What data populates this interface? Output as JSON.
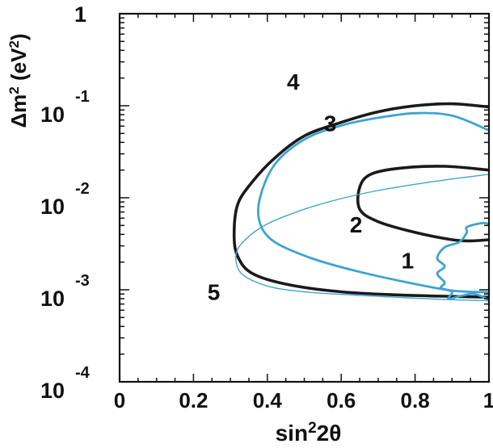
{
  "chart_data": {
    "type": "line",
    "xlabel": "sin²2θ",
    "ylabel": "Δm² (eV²)",
    "xlim": [
      0,
      1
    ],
    "ylim": [
      0.0001,
      1
    ],
    "yscale": "log",
    "grid": false,
    "legend": "none",
    "x_ticks": [
      "0",
      "0.2",
      "0.4",
      "0.6",
      "0.8",
      "1"
    ],
    "y_ticks": [
      {
        "value": 1,
        "label": "1"
      },
      {
        "value": 0.1,
        "base": "10",
        "exponent": "-1"
      },
      {
        "value": 0.01,
        "base": "10",
        "exponent": "-2"
      },
      {
        "value": 0.001,
        "base": "10",
        "exponent": "-3"
      },
      {
        "value": 0.0001,
        "base": "10",
        "exponent": "-4"
      }
    ],
    "colors": {
      "black": "#1a1a1a",
      "blue": "#3fa3d1",
      "axis": "#111111"
    },
    "series": [
      {
        "name": "4",
        "color": "#1a1a1a",
        "stroke": "thick",
        "closed": false,
        "label_at": [
          0.47,
          0.15
        ],
        "points": [
          [
            1.0,
            0.097
          ],
          [
            0.9,
            0.105
          ],
          [
            0.8,
            0.1
          ],
          [
            0.7,
            0.086
          ],
          [
            0.6,
            0.066
          ],
          [
            0.5,
            0.047
          ],
          [
            0.42,
            0.027
          ],
          [
            0.36,
            0.015
          ],
          [
            0.32,
            0.0085
          ],
          [
            0.31,
            0.004
          ],
          [
            0.32,
            0.0023
          ],
          [
            0.36,
            0.0015
          ],
          [
            0.46,
            0.00113
          ],
          [
            0.6,
            0.00095
          ],
          [
            0.75,
            0.00088
          ],
          [
            0.88,
            0.00085
          ],
          [
            1.0,
            0.00083
          ]
        ]
      },
      {
        "name": "3",
        "color": "#3fa3d1",
        "stroke": "medium",
        "closed": false,
        "label_at": [
          0.57,
          0.053
        ],
        "points": [
          [
            1.0,
            0.054
          ],
          [
            0.9,
            0.078
          ],
          [
            0.8,
            0.083
          ],
          [
            0.7,
            0.074
          ],
          [
            0.6,
            0.061
          ],
          [
            0.5,
            0.043
          ],
          [
            0.42,
            0.023
          ],
          [
            0.38,
            0.01
          ],
          [
            0.38,
            0.0053
          ],
          [
            0.42,
            0.0033
          ],
          [
            0.52,
            0.0022
          ],
          [
            0.64,
            0.0016
          ],
          [
            0.78,
            0.0012
          ],
          [
            0.9,
            0.00098
          ],
          [
            1.0,
            0.00094
          ]
        ]
      },
      {
        "name": "2",
        "color": "#1a1a1a",
        "stroke": "thick",
        "closed": false,
        "label_at": [
          0.64,
          0.0042
        ],
        "points": [
          [
            1.0,
            0.02
          ],
          [
            0.88,
            0.022
          ],
          [
            0.76,
            0.021
          ],
          [
            0.68,
            0.018
          ],
          [
            0.65,
            0.013
          ],
          [
            0.65,
            0.0075
          ],
          [
            0.7,
            0.0055
          ],
          [
            0.8,
            0.0042
          ],
          [
            0.9,
            0.0035
          ],
          [
            0.95,
            0.0034
          ],
          [
            1.0,
            0.0035
          ]
        ]
      },
      {
        "name": "1",
        "color": "#3fa3d1",
        "stroke": "medium",
        "closed": false,
        "label_at": [
          0.78,
          0.0017
        ],
        "points": [
          [
            1.0,
            0.0052
          ],
          [
            0.98,
            0.0053
          ],
          [
            0.94,
            0.0048
          ],
          [
            0.94,
            0.0042
          ],
          [
            0.92,
            0.0033
          ],
          [
            0.88,
            0.0029
          ],
          [
            0.86,
            0.0022
          ],
          [
            0.88,
            0.0018
          ],
          [
            0.86,
            0.0015
          ],
          [
            0.88,
            0.0012
          ],
          [
            0.87,
            0.00105
          ],
          [
            0.9,
            0.00095
          ],
          [
            0.89,
            0.0008
          ],
          [
            0.92,
            0.00085
          ],
          [
            0.95,
            0.0009
          ],
          [
            0.97,
            0.00088
          ],
          [
            1.0,
            0.00078
          ]
        ]
      },
      {
        "name": "5",
        "color": "#3fa3d1",
        "stroke": "thin",
        "closed": false,
        "label_at": [
          0.255,
          0.00078
        ],
        "points": [
          [
            1.0,
            0.018
          ],
          [
            0.9,
            0.016
          ],
          [
            0.8,
            0.014
          ],
          [
            0.7,
            0.012
          ],
          [
            0.6,
            0.0098
          ],
          [
            0.5,
            0.0075
          ],
          [
            0.4,
            0.0052
          ],
          [
            0.34,
            0.0035
          ],
          [
            0.315,
            0.0024
          ],
          [
            0.33,
            0.0015
          ],
          [
            0.4,
            0.0011
          ],
          [
            0.5,
            0.00095
          ],
          [
            0.65,
            0.00087
          ],
          [
            0.8,
            0.00081
          ],
          [
            0.9,
            0.00078
          ],
          [
            1.0,
            0.00076
          ]
        ]
      }
    ]
  }
}
